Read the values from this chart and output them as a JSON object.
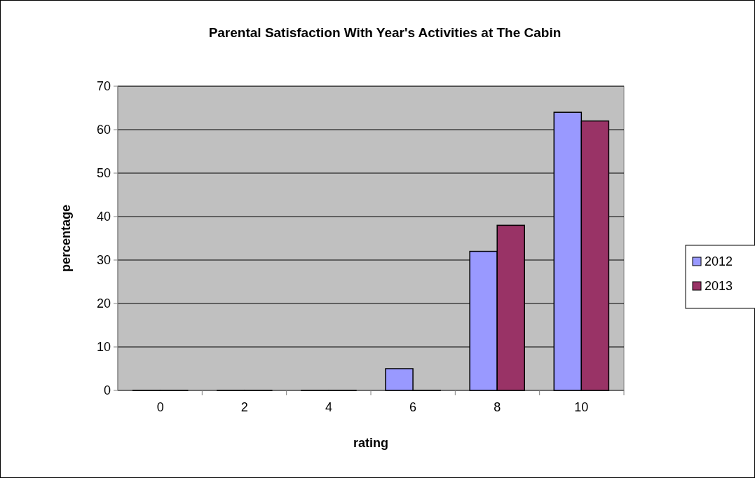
{
  "chart_data": {
    "type": "bar",
    "title": "Parental Satisfaction With Year's Activities at The Cabin",
    "xlabel": "rating",
    "ylabel": "percentage",
    "categories": [
      "0",
      "2",
      "4",
      "6",
      "8",
      "10"
    ],
    "series": [
      {
        "name": "2012",
        "color": "#9999ff",
        "values": [
          0,
          0,
          0,
          5,
          32,
          64
        ]
      },
      {
        "name": "2013",
        "color": "#993366",
        "values": [
          0,
          0,
          0,
          0,
          38,
          62
        ]
      }
    ],
    "ylim": [
      0,
      70
    ],
    "yticks": [
      0,
      10,
      20,
      30,
      40,
      50,
      60,
      70
    ],
    "grid": "y",
    "legend": "right"
  }
}
